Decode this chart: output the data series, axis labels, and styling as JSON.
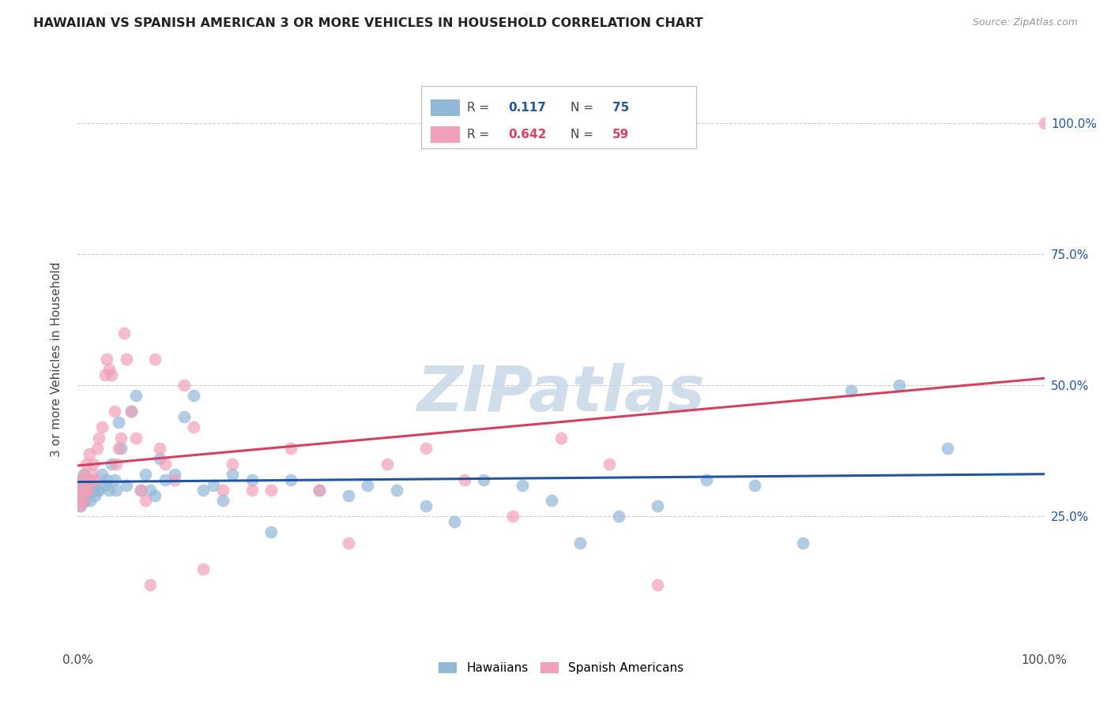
{
  "title": "HAWAIIAN VS SPANISH AMERICAN 3 OR MORE VEHICLES IN HOUSEHOLD CORRELATION CHART",
  "source": "Source: ZipAtlas.com",
  "ylabel": "3 or more Vehicles in Household",
  "yticks": [
    "25.0%",
    "50.0%",
    "75.0%",
    "100.0%"
  ],
  "ytick_values": [
    25.0,
    50.0,
    75.0,
    100.0
  ],
  "ylim": [
    0.0,
    110.0
  ],
  "xlim": [
    0.0,
    100.0
  ],
  "legend_hawaiians": "Hawaiians",
  "legend_spanish": "Spanish Americans",
  "R_hawaiian": 0.117,
  "N_hawaiian": 75,
  "R_spanish": 0.642,
  "N_spanish": 59,
  "hawaiian_color": "#92b8d8",
  "hawaiian_line_color": "#2255a0",
  "spanish_color": "#f0a0b8",
  "spanish_line_color": "#d44060",
  "background_color": "#ffffff",
  "grid_color": "#cccccc",
  "hawaiians_x": [
    0.1,
    0.2,
    0.3,
    0.3,
    0.4,
    0.5,
    0.5,
    0.6,
    0.7,
    0.8,
    0.9,
    1.0,
    1.1,
    1.2,
    1.3,
    1.5,
    1.6,
    1.8,
    2.0,
    2.2,
    2.5,
    2.8,
    3.0,
    3.2,
    3.5,
    3.8,
    4.0,
    4.2,
    4.5,
    5.0,
    5.5,
    6.0,
    6.5,
    7.0,
    7.5,
    8.0,
    8.5,
    9.0,
    10.0,
    11.0,
    12.0,
    13.0,
    14.0,
    15.0,
    16.0,
    18.0,
    20.0,
    22.0,
    25.0,
    28.0,
    30.0,
    33.0,
    36.0,
    39.0,
    42.0,
    46.0,
    49.0,
    52.0,
    56.0,
    60.0,
    65.0,
    70.0,
    75.0,
    80.0,
    85.0,
    90.0
  ],
  "hawaiians_y": [
    30.0,
    29.0,
    32.0,
    27.0,
    31.0,
    28.0,
    30.0,
    33.0,
    29.0,
    28.0,
    30.0,
    31.0,
    32.0,
    30.0,
    28.0,
    30.0,
    31.0,
    29.0,
    30.0,
    30.0,
    33.0,
    31.0,
    32.0,
    30.0,
    35.0,
    32.0,
    30.0,
    43.0,
    38.0,
    31.0,
    45.0,
    48.0,
    30.0,
    33.0,
    30.0,
    29.0,
    36.0,
    32.0,
    33.0,
    44.0,
    48.0,
    30.0,
    31.0,
    28.0,
    33.0,
    32.0,
    22.0,
    32.0,
    30.0,
    29.0,
    31.0,
    30.0,
    27.0,
    24.0,
    32.0,
    31.0,
    28.0,
    20.0,
    25.0,
    27.0,
    32.0,
    31.0,
    20.0,
    49.0,
    50.0,
    38.0
  ],
  "spanish_x": [
    0.1,
    0.2,
    0.3,
    0.4,
    0.5,
    0.6,
    0.7,
    0.8,
    0.9,
    1.0,
    1.2,
    1.3,
    1.5,
    1.6,
    1.8,
    2.0,
    2.2,
    2.5,
    2.8,
    3.0,
    3.2,
    3.5,
    3.8,
    4.0,
    4.2,
    4.5,
    4.8,
    5.0,
    5.5,
    6.0,
    6.5,
    7.0,
    7.5,
    8.0,
    8.5,
    9.0,
    10.0,
    11.0,
    12.0,
    13.0,
    15.0,
    16.0,
    18.0,
    20.0,
    22.0,
    25.0,
    28.0,
    32.0,
    36.0,
    40.0,
    45.0,
    50.0,
    55.0,
    60.0,
    100.0
  ],
  "spanish_y": [
    28.0,
    27.0,
    30.0,
    32.0,
    28.0,
    30.0,
    33.0,
    30.0,
    35.0,
    30.0,
    37.0,
    32.0,
    33.0,
    35.0,
    32.0,
    38.0,
    40.0,
    42.0,
    52.0,
    55.0,
    53.0,
    52.0,
    45.0,
    35.0,
    38.0,
    40.0,
    60.0,
    55.0,
    45.0,
    40.0,
    30.0,
    28.0,
    12.0,
    55.0,
    38.0,
    35.0,
    32.0,
    50.0,
    42.0,
    15.0,
    30.0,
    35.0,
    30.0,
    30.0,
    38.0,
    30.0,
    20.0,
    35.0,
    38.0,
    32.0,
    25.0,
    40.0,
    35.0,
    12.0,
    100.0
  ],
  "watermark": "ZIPatlas",
  "watermark_color": "#c8d8e8"
}
